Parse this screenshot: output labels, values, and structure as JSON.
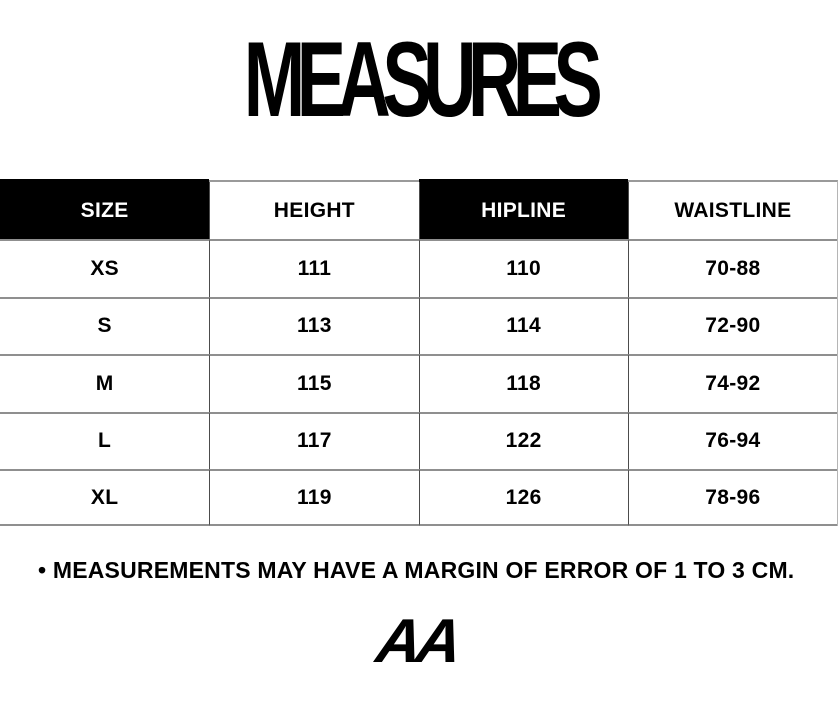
{
  "title": "MEASURES",
  "table": {
    "columns": [
      "SIZE",
      "HEIGHT",
      "HIPLINE",
      "WAISTLINE"
    ],
    "rows": [
      [
        "XS",
        "111",
        "110",
        "70-88"
      ],
      [
        "S",
        "113",
        "114",
        "72-90"
      ],
      [
        "M",
        "115",
        "118",
        "74-92"
      ],
      [
        "L",
        "117",
        "122",
        "76-94"
      ],
      [
        "XL",
        "119",
        "126",
        "78-96"
      ]
    ]
  },
  "note": "• MEASUREMENTS MAY HAVE A MARGIN OF ERROR OF 1 TO 3 CM.",
  "logo_text": "AA",
  "colors": {
    "background": "#ffffff",
    "text": "#000000",
    "header_dark_bg": "#000000",
    "header_dark_text": "#ffffff",
    "grid_horizontal": "#8f8f8f",
    "grid_vertical": "#4c4c4c"
  },
  "chart_data": {
    "type": "table",
    "title": "MEASURES",
    "columns": [
      "SIZE",
      "HEIGHT",
      "HIPLINE",
      "WAISTLINE"
    ],
    "rows": [
      [
        "XS",
        111,
        110,
        "70-88"
      ],
      [
        "S",
        113,
        114,
        "72-90"
      ],
      [
        "M",
        115,
        118,
        "74-92"
      ],
      [
        "L",
        117,
        122,
        "76-94"
      ],
      [
        "XL",
        119,
        126,
        "78-96"
      ]
    ],
    "note": "• MEASUREMENTS MAY HAVE A MARGIN OF ERROR OF 1 TO 3 CM.",
    "layout_hints": {
      "dark_header_columns": [
        "SIZE",
        "HIPLINE"
      ],
      "light_header_columns": [
        "HEIGHT",
        "WAISTLINE"
      ],
      "grid": "horizontal rules between all rows, vertical rules between columns"
    }
  }
}
